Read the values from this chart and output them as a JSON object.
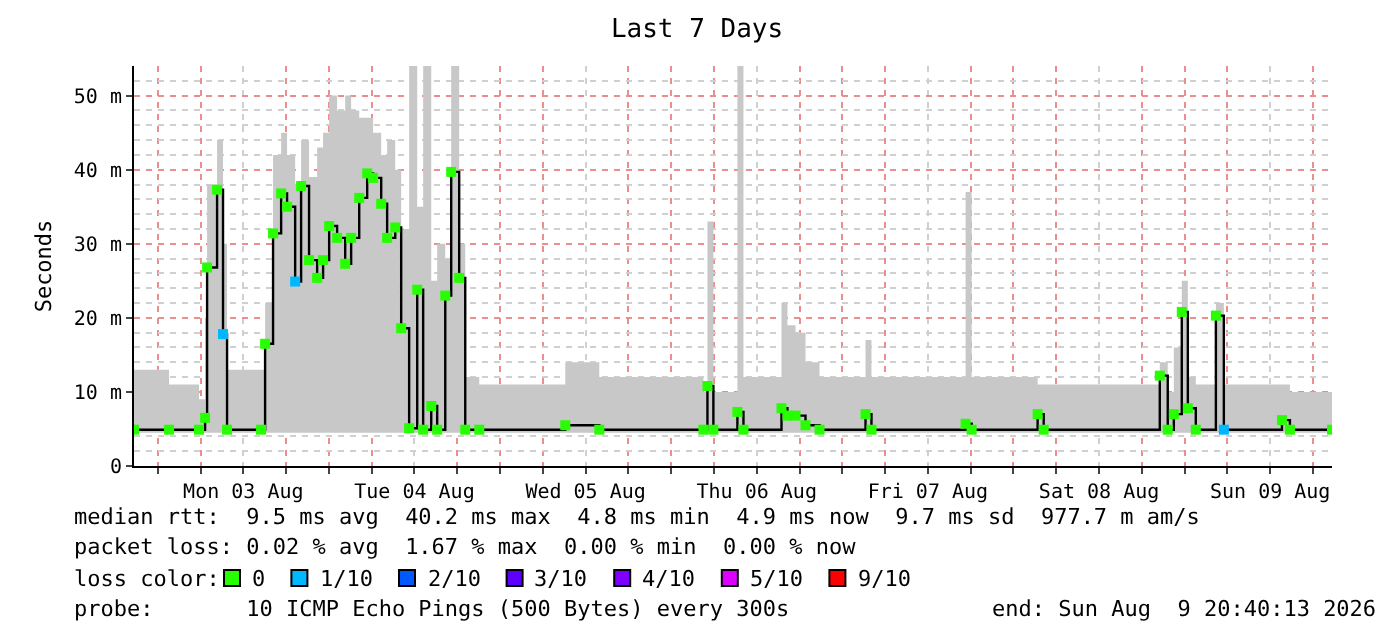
{
  "chart_data": {
    "type": "step",
    "title": "Last 7 Days",
    "ylabel": "Seconds",
    "legend_title": "loss color:",
    "x": [
      "2026-08-02T20:40",
      "2026-08-03T01:35",
      "2026-08-03T05:47",
      "2026-08-03T06:38",
      "2026-08-03T06:55",
      "2026-08-03T08:19",
      "2026-08-03T09:09",
      "2026-08-03T09:43",
      "2026-08-03T14:29",
      "2026-08-03T15:03",
      "2026-08-03T16:10",
      "2026-08-03T17:18",
      "2026-08-03T18:08",
      "2026-08-03T19:16",
      "2026-08-03T20:06",
      "2026-08-03T21:13",
      "2026-08-03T22:21",
      "2026-08-03T23:11",
      "2026-08-04T00:02",
      "2026-08-04T01:09",
      "2026-08-04T02:17",
      "2026-08-04T03:07",
      "2026-08-04T04:15",
      "2026-08-04T05:22",
      "2026-08-04T06:12",
      "2026-08-04T07:20",
      "2026-08-04T08:10",
      "2026-08-04T09:18",
      "2026-08-04T10:08",
      "2026-08-04T11:15",
      "2026-08-04T12:23",
      "2026-08-04T13:13",
      "2026-08-04T14:21",
      "2026-08-04T15:11",
      "2026-08-04T16:19",
      "2026-08-04T17:09",
      "2026-08-04T18:16",
      "2026-08-04T19:07",
      "2026-08-04T21:05",
      "2026-08-05T09:09",
      "2026-08-05T13:55",
      "2026-08-06T04:31",
      "2026-08-06T05:05",
      "2026-08-06T05:55",
      "2026-08-06T09:17",
      "2026-08-06T10:08",
      "2026-08-06T15:28",
      "2026-08-06T16:18",
      "2026-08-06T17:26",
      "2026-08-06T18:50",
      "2026-08-06T20:48",
      "2026-08-07T03:15",
      "2026-08-07T04:05",
      "2026-08-07T17:17",
      "2026-08-07T18:08",
      "2026-08-08T03:23",
      "2026-08-08T04:14",
      "2026-08-08T20:31",
      "2026-08-08T21:38",
      "2026-08-08T22:29",
      "2026-08-08T23:36",
      "2026-08-09T00:27",
      "2026-08-09T01:34",
      "2026-08-09T04:23",
      "2026-08-09T05:30",
      "2026-08-09T13:39",
      "2026-08-09T14:46",
      "2026-08-09T20:40"
    ],
    "series": [
      {
        "color": "#000000",
        "marker": "none",
        "values": [
          4.9,
          4.9,
          4.9,
          6.5,
          26.8,
          37.3,
          17.8,
          4.9,
          4.9,
          16.5,
          31.4,
          36.8,
          35.0,
          24.9,
          37.8,
          27.8,
          25.4,
          27.8,
          32.4,
          30.8,
          27.3,
          30.8,
          36.2,
          39.5,
          38.9,
          35.4,
          30.8,
          32.2,
          18.6,
          5.1,
          23.8,
          4.9,
          8.1,
          4.9,
          23.0,
          39.7,
          25.4,
          4.9,
          4.9,
          5.5,
          4.9,
          4.9,
          10.8,
          4.9,
          7.3,
          4.9,
          7.8,
          6.8,
          6.8,
          5.5,
          4.9,
          7.0,
          4.9,
          5.7,
          4.9,
          7.0,
          4.9,
          12.2,
          4.9,
          7.0,
          20.8,
          7.8,
          4.9,
          20.3,
          4.9,
          6.2,
          4.9,
          4.9
        ],
        "lower": [
          4.5,
          4.5,
          4.5,
          4.5,
          4.5,
          4.5,
          4.5,
          4.5,
          4.5,
          4.5,
          4.5,
          4.5,
          4.5,
          4.5,
          4.5,
          4.5,
          4.5,
          4.5,
          4.5,
          4.5,
          4.5,
          4.5,
          4.5,
          4.5,
          4.5,
          4.5,
          4.5,
          4.5,
          4.5,
          4.5,
          4.5,
          4.5,
          4.5,
          4.5,
          4.5,
          4.5,
          4.5,
          4.5,
          4.5,
          4.5,
          4.5,
          4.5,
          4.5,
          4.5,
          4.5,
          4.5,
          4.5,
          4.5,
          4.5,
          4.5,
          4.5,
          4.5,
          4.5,
          4.5,
          4.5,
          4.5,
          4.5,
          4.5,
          4.5,
          4.5,
          4.5,
          4.5,
          4.5,
          4.5,
          4.5,
          4.5,
          4.5,
          4.5
        ],
        "upper": [
          13,
          11,
          9,
          20,
          38,
          44,
          30,
          13,
          13,
          22,
          42,
          45,
          42,
          38,
          44,
          39,
          43,
          45,
          50,
          48,
          50,
          48,
          47,
          47,
          45,
          42,
          44,
          40,
          32,
          54,
          35,
          54,
          25,
          30,
          28,
          54,
          30,
          12,
          11,
          14,
          12,
          10,
          33,
          10,
          54,
          12,
          22,
          19,
          18,
          14,
          12,
          17,
          12,
          37,
          12,
          11,
          11,
          14,
          10,
          16,
          25,
          12,
          11,
          22,
          11,
          11,
          10,
          10
        ]
      },
      {
        "type": "scatter",
        "name": "0",
        "color": "#26ff00",
        "values": [
          4.9,
          4.9,
          4.9,
          6.5,
          26.8,
          37.3,
          null,
          4.9,
          4.9,
          16.5,
          31.4,
          36.8,
          35.0,
          null,
          37.8,
          27.8,
          25.4,
          27.8,
          32.4,
          30.8,
          27.3,
          30.8,
          36.2,
          39.5,
          38.9,
          35.4,
          30.8,
          32.2,
          18.6,
          5.1,
          23.8,
          4.9,
          8.1,
          4.9,
          23.0,
          39.7,
          25.4,
          4.9,
          4.9,
          5.5,
          4.9,
          4.9,
          10.8,
          4.9,
          7.3,
          4.9,
          7.8,
          6.8,
          6.8,
          5.5,
          4.9,
          7.0,
          4.9,
          5.7,
          4.9,
          7.0,
          4.9,
          12.2,
          4.9,
          7.0,
          20.8,
          7.8,
          4.9,
          20.3,
          null,
          6.2,
          4.9,
          4.9
        ]
      },
      {
        "type": "scatter",
        "name": "1/10",
        "color": "#00b8ff",
        "x": [
          "2026-08-03T09:09",
          "2026-08-03T19:16",
          "2026-08-09T05:30"
        ],
        "values": [
          17.8,
          24.9,
          4.9
        ]
      },
      {
        "type": "scatter",
        "name": "2/10",
        "color": "#0059ff",
        "values": [
          null,
          null,
          null,
          null,
          null,
          null,
          null,
          null,
          null,
          null,
          null,
          null,
          null,
          null,
          null,
          null,
          null,
          null,
          null,
          null,
          null,
          null,
          null,
          null,
          null,
          null,
          null,
          null,
          null,
          null,
          null,
          null,
          null,
          null,
          null,
          null,
          null,
          null,
          null,
          null,
          null,
          null,
          null,
          null,
          null,
          null,
          null,
          null,
          null,
          null,
          null,
          null,
          null,
          null,
          null,
          null,
          null,
          null,
          null,
          null,
          null,
          null,
          null,
          null,
          null,
          null,
          null,
          null
        ]
      },
      {
        "type": "scatter",
        "name": "3/10",
        "color": "#5e00ff",
        "values": [
          null,
          null,
          null,
          null,
          null,
          null,
          null,
          null,
          null,
          null,
          null,
          null,
          null,
          null,
          null,
          null,
          null,
          null,
          null,
          null,
          null,
          null,
          null,
          null,
          null,
          null,
          null,
          null,
          null,
          null,
          null,
          null,
          null,
          null,
          null,
          null,
          null,
          null,
          null,
          null,
          null,
          null,
          null,
          null,
          null,
          null,
          null,
          null,
          null,
          null,
          null,
          null,
          null,
          null,
          null,
          null,
          null,
          null,
          null,
          null,
          null,
          null,
          null,
          null,
          null,
          null,
          null,
          null
        ]
      },
      {
        "type": "scatter",
        "name": "4/10",
        "color": "#7e00ff",
        "values": [
          null,
          null,
          null,
          null,
          null,
          null,
          null,
          null,
          null,
          null,
          null,
          null,
          null,
          null,
          null,
          null,
          null,
          null,
          null,
          null,
          null,
          null,
          null,
          null,
          null,
          null,
          null,
          null,
          null,
          null,
          null,
          null,
          null,
          null,
          null,
          null,
          null,
          null,
          null,
          null,
          null,
          null,
          null,
          null,
          null,
          null,
          null,
          null,
          null,
          null,
          null,
          null,
          null,
          null,
          null,
          null,
          null,
          null,
          null,
          null,
          null,
          null,
          null,
          null,
          null,
          null,
          null,
          null
        ]
      },
      {
        "type": "scatter",
        "name": "5/10",
        "color": "#dd00ff",
        "values": [
          null,
          null,
          null,
          null,
          null,
          null,
          null,
          null,
          null,
          null,
          null,
          null,
          null,
          null,
          null,
          null,
          null,
          null,
          null,
          null,
          null,
          null,
          null,
          null,
          null,
          null,
          null,
          null,
          null,
          null,
          null,
          null,
          null,
          null,
          null,
          null,
          null,
          null,
          null,
          null,
          null,
          null,
          null,
          null,
          null,
          null,
          null,
          null,
          null,
          null,
          null,
          null,
          null,
          null,
          null,
          null,
          null,
          null,
          null,
          null,
          null,
          null,
          null,
          null,
          null,
          null,
          null,
          null
        ]
      },
      {
        "type": "scatter",
        "name": "9/10",
        "color": "#ff0000",
        "values": [
          null,
          null,
          null,
          null,
          null,
          null,
          null,
          null,
          null,
          null,
          null,
          null,
          null,
          null,
          null,
          null,
          null,
          null,
          null,
          null,
          null,
          null,
          null,
          null,
          null,
          null,
          null,
          null,
          null,
          null,
          null,
          null,
          null,
          null,
          null,
          null,
          null,
          null,
          null,
          null,
          null,
          null,
          null,
          null,
          null,
          null,
          null,
          null,
          null,
          null,
          null,
          null,
          null,
          null,
          null,
          null,
          null,
          null,
          null,
          null,
          null,
          null,
          null,
          null,
          null,
          null,
          null,
          null
        ]
      }
    ],
    "xlim": [
      "2026-08-02T20:40",
      "2026-08-09T20:40"
    ],
    "xticks": [
      {
        "value": "2026-08-03T12:00",
        "label": "Mon 03 Aug"
      },
      {
        "value": "2026-08-04T12:00",
        "label": "Tue 04 Aug"
      },
      {
        "value": "2026-08-05T12:00",
        "label": "Wed 05 Aug"
      },
      {
        "value": "2026-08-06T12:00",
        "label": "Thu 06 Aug"
      },
      {
        "value": "2026-08-07T12:00",
        "label": "Fri 07 Aug"
      },
      {
        "value": "2026-08-08T12:00",
        "label": "Sat 08 Aug"
      },
      {
        "value": "2026-08-09T12:00",
        "label": "Sun 09 Aug"
      }
    ],
    "ylim": [
      0,
      54
    ],
    "yticks": [
      0,
      {
        "value": 10,
        "label": "10 m"
      },
      {
        "value": 20,
        "label": "20 m"
      },
      {
        "value": 30,
        "label": "30 m"
      },
      {
        "value": 40,
        "label": "40 m"
      },
      {
        "value": 50,
        "label": "50 m"
      }
    ],
    "grid": true,
    "legend": "bottom",
    "marker": "square",
    "line_style": "solid",
    "annotations": [
      "median rtt:  9.5 ms avg  40.2 ms max  4.8 ms min  4.9 ms now  9.7 ms sd  977.7 m am/s",
      "packet loss: 0.02 % avg  1.67 % max  0.00 % min  0.00 % now",
      "probe:       10 ICMP Echo Pings (500 Bytes) every 300s",
      "end: Sun Aug  9 20:40:13 2026"
    ]
  }
}
